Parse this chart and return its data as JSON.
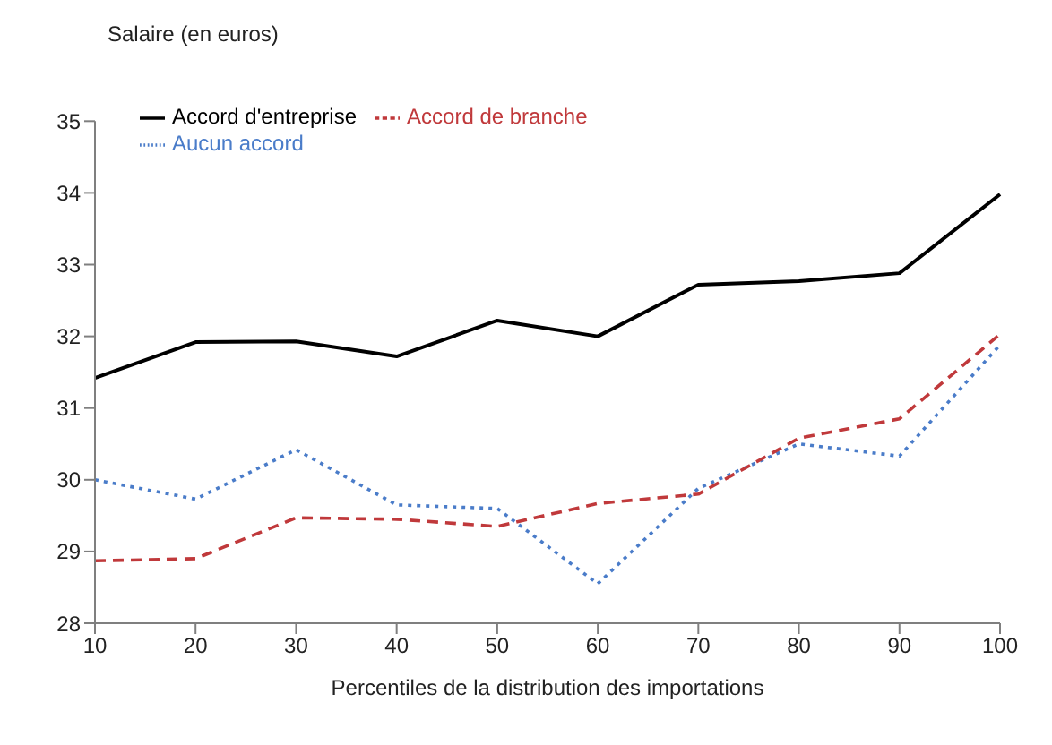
{
  "chart_data": {
    "type": "line",
    "ylabel": "Salaire (en euros)",
    "xlabel": "Percentiles de la distribution des importations",
    "categories": [
      "10",
      "20",
      "30",
      "40",
      "50",
      "60",
      "70",
      "80",
      "90",
      "100"
    ],
    "series": [
      {
        "name": "Aucun accord",
        "color": "#4a7cc9",
        "line_style": "dotted",
        "values": [
          30.0,
          29.73,
          30.42,
          29.65,
          29.6,
          28.55,
          29.88,
          30.5,
          30.33,
          31.88
        ]
      },
      {
        "name": "Accord de branche",
        "color": "#c0393b",
        "line_style": "dashed",
        "values": [
          28.87,
          28.9,
          29.47,
          29.45,
          29.35,
          29.67,
          29.8,
          30.58,
          30.85,
          32.03
        ]
      },
      {
        "name": "Accord d'entreprise",
        "color": "#000000",
        "line_style": "solid",
        "values": [
          31.42,
          31.92,
          31.93,
          31.72,
          32.22,
          32.0,
          32.72,
          32.77,
          32.88,
          33.98
        ]
      }
    ],
    "ylim": [
      28,
      35
    ],
    "yticks": [
      28,
      29,
      30,
      31,
      32,
      33,
      34,
      35
    ],
    "grid": false,
    "legend": "top left",
    "marker": "none"
  }
}
